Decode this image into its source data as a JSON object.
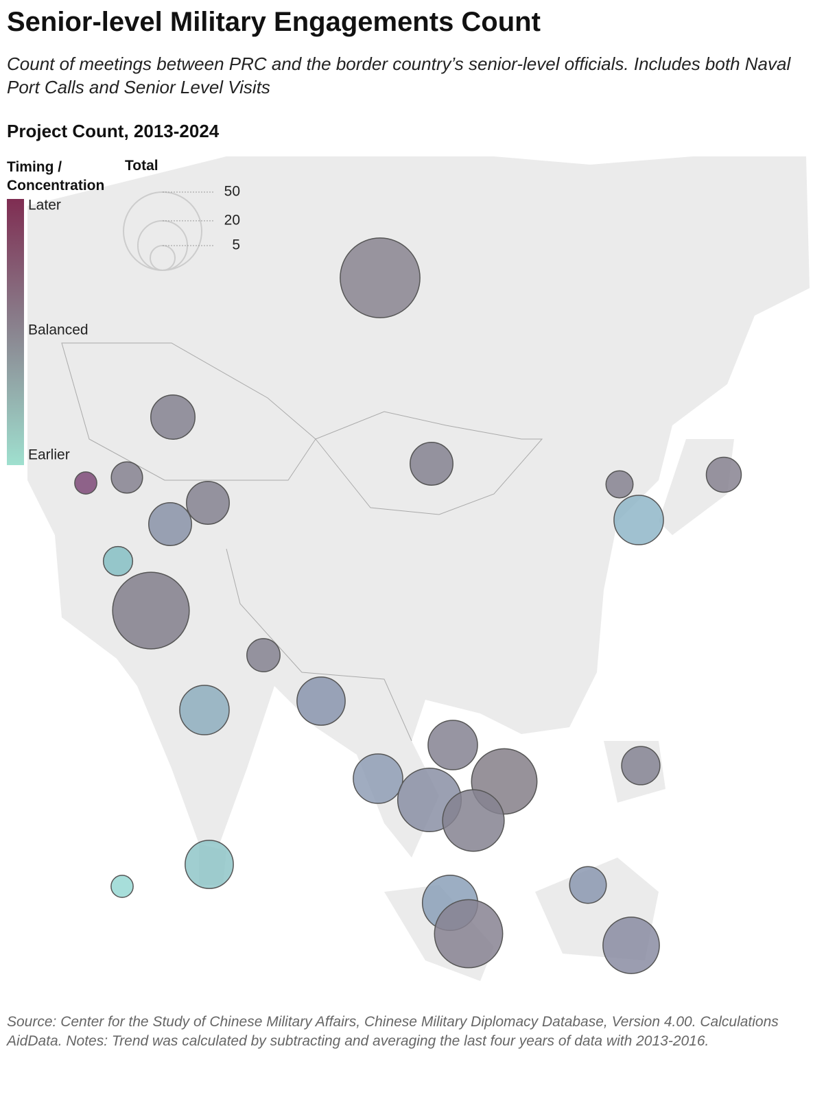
{
  "chart_data": {
    "type": "bubble-map",
    "title": "Senior-level Military Engagements Count",
    "subtitle": "Count of meetings between PRC and the border country’s senior-level officials. Includes both Naval Port Calls and Senior Level Visits",
    "heading": "Project Count, 2013-2024",
    "color_legend": {
      "title": "Timing / Concentration",
      "labels": [
        "Later",
        "Balanced",
        "Earlier"
      ],
      "colors": [
        "#7f2d52",
        "#8a8590",
        "#9fe0cf"
      ]
    },
    "size_legend": {
      "title": "Total",
      "values": [
        50,
        20,
        5
      ]
    },
    "bubbles": {
      "values": [
        52,
        16,
        15,
        10,
        6,
        20,
        4,
        8,
        15,
        15,
        7,
        48,
        9,
        20,
        19,
        20,
        35,
        20,
        33,
        31,
        12,
        19,
        4,
        11,
        25,
        38,
        26
      ],
      "colors": [
        "#8a8590",
        "#858290",
        "#858290",
        "#878390",
        "#868290",
        "#8fb6c8",
        "#7e4a78",
        "#868290",
        "#858290",
        "#8a93a8",
        "#86bfc4",
        "#837f8c",
        "#858290",
        "#8eaebe",
        "#8995ae",
        "#858292",
        "#857f88",
        "#8f9db5",
        "#8a8fa5",
        "#858290",
        "#858493",
        "#8fc6c8",
        "#98d8d3",
        "#8b98b0",
        "#8ba0b8",
        "#878392",
        "#8a8ca2"
      ]
    },
    "source": "Source: Center for the Study of Chinese Military Affairs, Chinese Military Diplomacy Database, Version 4.00. Calculations AidData. Notes: Trend was calculated by subtracting and averaging the last four years of data with 2013-2016."
  }
}
